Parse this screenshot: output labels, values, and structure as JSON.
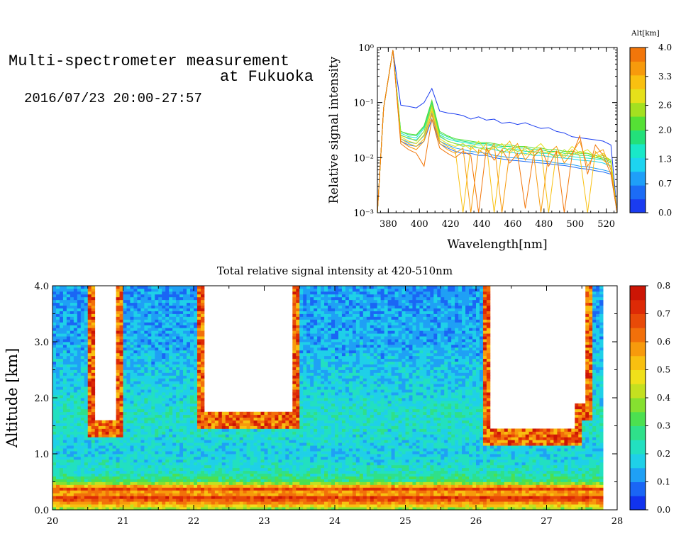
{
  "header": {
    "title_line1": "Multi-spectrometer measurement",
    "title_line2": "at Fukuoka",
    "date_range": "2016/07/23 20:00-27:57"
  },
  "chart_data": [
    {
      "type": "line",
      "title": "",
      "xlabel": "Wavelength[nm]",
      "ylabel": "Relative signal intensity",
      "xlim": [
        373,
        527
      ],
      "ylim": [
        0.001,
        1
      ],
      "yscale": "log",
      "x_ticks": [
        "380",
        "400",
        "420",
        "440",
        "460",
        "480",
        "500",
        "520"
      ],
      "y_ticks": [
        "10⁻³",
        "10⁻²",
        "10⁻¹",
        "10⁰"
      ],
      "colorbar": {
        "label": "Alt[km]",
        "ticks": [
          "0.0",
          "0.7",
          "1.3",
          "2.0",
          "2.6",
          "3.3",
          "4.0"
        ],
        "range": [
          0,
          4
        ],
        "colors": [
          "#1a3cf0",
          "#1c6cf5",
          "#1f9ff8",
          "#1dd4f0",
          "#19e8c8",
          "#23e07a",
          "#55e035",
          "#a4e020",
          "#e6e01a",
          "#f9c010",
          "#f79a0c",
          "#f2760a"
        ]
      },
      "x": [
        373,
        377,
        383,
        388,
        393,
        398,
        403,
        408,
        413,
        418,
        423,
        428,
        433,
        438,
        443,
        448,
        453,
        458,
        463,
        468,
        473,
        478,
        483,
        488,
        493,
        498,
        503,
        508,
        513,
        518,
        523,
        527
      ],
      "series": [
        {
          "color": "#1a3cf0",
          "values": [
            0.001,
            0.08,
            0.9,
            0.09,
            0.085,
            0.08,
            0.1,
            0.18,
            0.07,
            0.065,
            0.062,
            0.058,
            0.05,
            0.055,
            0.048,
            0.05,
            0.042,
            0.044,
            0.04,
            0.043,
            0.038,
            0.034,
            0.035,
            0.03,
            0.028,
            0.024,
            0.023,
            0.022,
            0.021,
            0.02,
            0.017,
            0.001
          ]
        },
        {
          "color": "#1c6cf5",
          "values": [
            0.001,
            0.08,
            0.9,
            0.02,
            0.017,
            0.016,
            0.02,
            0.05,
            0.018,
            0.015,
            0.013,
            0.012,
            0.012,
            0.011,
            0.011,
            0.01,
            0.0095,
            0.009,
            0.0088,
            0.0085,
            0.0082,
            0.008,
            0.0078,
            0.0074,
            0.0072,
            0.0068,
            0.0064,
            0.0062,
            0.0058,
            0.0055,
            0.005,
            0.001
          ]
        },
        {
          "color": "#1f9ff8",
          "values": [
            0.001,
            0.08,
            0.9,
            0.022,
            0.019,
            0.018,
            0.025,
            0.065,
            0.02,
            0.017,
            0.015,
            0.014,
            0.013,
            0.0125,
            0.012,
            0.011,
            0.0105,
            0.01,
            0.0098,
            0.0095,
            0.009,
            0.0088,
            0.0085,
            0.008,
            0.0078,
            0.0075,
            0.007,
            0.0068,
            0.0064,
            0.006,
            0.0055,
            0.001
          ]
        },
        {
          "color": "#1dd4f0",
          "values": [
            0.001,
            0.08,
            0.9,
            0.026,
            0.022,
            0.021,
            0.03,
            0.08,
            0.024,
            0.02,
            0.018,
            0.017,
            0.016,
            0.015,
            0.015,
            0.014,
            0.013,
            0.0125,
            0.012,
            0.012,
            0.011,
            0.011,
            0.0105,
            0.01,
            0.0098,
            0.0095,
            0.009,
            0.0088,
            0.0085,
            0.008,
            0.007,
            0.001
          ]
        },
        {
          "color": "#19e8c8",
          "values": [
            0.001,
            0.08,
            0.9,
            0.028,
            0.024,
            0.023,
            0.034,
            0.09,
            0.026,
            0.022,
            0.02,
            0.019,
            0.018,
            0.017,
            0.017,
            0.016,
            0.015,
            0.014,
            0.014,
            0.013,
            0.013,
            0.012,
            0.012,
            0.011,
            0.011,
            0.0105,
            0.01,
            0.0098,
            0.0095,
            0.009,
            0.008,
            0.001
          ]
        },
        {
          "color": "#23e07a",
          "values": [
            0.001,
            0.08,
            0.9,
            0.03,
            0.026,
            0.025,
            0.036,
            0.1,
            0.028,
            0.024,
            0.021,
            0.02,
            0.019,
            0.018,
            0.018,
            0.017,
            0.016,
            0.016,
            0.015,
            0.015,
            0.014,
            0.014,
            0.013,
            0.013,
            0.012,
            0.012,
            0.011,
            0.011,
            0.01,
            0.0095,
            0.0085,
            0.001
          ]
        },
        {
          "color": "#55e035",
          "values": [
            0.001,
            0.08,
            0.9,
            0.03,
            0.027,
            0.026,
            0.038,
            0.11,
            0.03,
            0.025,
            0.022,
            0.021,
            0.02,
            0.019,
            0.019,
            0.018,
            0.017,
            0.017,
            0.016,
            0.016,
            0.015,
            0.015,
            0.014,
            0.014,
            0.013,
            0.013,
            0.012,
            0.012,
            0.011,
            0.01,
            0.009,
            0.001
          ]
        },
        {
          "color": "#a4e020",
          "values": [
            0.001,
            0.08,
            0.9,
            0.025,
            0.023,
            0.02,
            0.03,
            0.09,
            0.025,
            0.02,
            0.018,
            0.016,
            0.017,
            0.015,
            0.014,
            0.016,
            0.012,
            0.015,
            0.013,
            0.014,
            0.011,
            0.013,
            0.012,
            0.01,
            0.014,
            0.011,
            0.013,
            0.012,
            0.01,
            0.011,
            0.009,
            0.001
          ]
        },
        {
          "color": "#e6e01a",
          "values": [
            0.001,
            0.08,
            0.9,
            0.024,
            0.02,
            0.018,
            0.026,
            0.08,
            0.022,
            0.018,
            0.016,
            0.018,
            0.014,
            0.02,
            0.013,
            0.015,
            0.018,
            0.012,
            0.016,
            0.011,
            0.014,
            0.018,
            0.012,
            0.013,
            0.011,
            0.016,
            0.012,
            0.014,
            0.01,
            0.012,
            0.008,
            0.001
          ]
        },
        {
          "color": "#f9c010",
          "values": [
            0.001,
            0.08,
            0.9,
            0.022,
            0.018,
            0.016,
            0.022,
            0.07,
            0.02,
            0.016,
            0.014,
            0.001,
            0.016,
            0.012,
            0.018,
            0.001,
            0.014,
            0.02,
            0.01,
            0.016,
            0.012,
            0.015,
            0.001,
            0.013,
            0.01,
            0.014,
            0.011,
            0.001,
            0.013,
            0.009,
            0.007,
            0.001
          ]
        },
        {
          "color": "#f79a0c",
          "values": [
            0.001,
            0.08,
            0.9,
            0.02,
            0.016,
            0.014,
            0.02,
            0.06,
            0.018,
            0.014,
            0.012,
            0.015,
            0.001,
            0.014,
            0.011,
            0.018,
            0.001,
            0.013,
            0.018,
            0.009,
            0.014,
            0.001,
            0.012,
            0.016,
            0.008,
            0.012,
            0.02,
            0.007,
            0.012,
            0.014,
            0.006,
            0.001
          ]
        },
        {
          "color": "#f2760a",
          "values": [
            0.001,
            0.08,
            0.9,
            0.018,
            0.014,
            0.012,
            0.007,
            0.05,
            0.015,
            0.012,
            0.01,
            0.013,
            0.011,
            0.001,
            0.015,
            0.009,
            0.014,
            0.008,
            0.012,
            0.0012,
            0.01,
            0.015,
            0.007,
            0.013,
            0.001,
            0.011,
            0.025,
            0.005,
            0.017,
            0.011,
            0.005,
            0.001
          ]
        }
      ]
    },
    {
      "type": "heatmap",
      "title": "Total relative signal intensity at 420-510nm",
      "xlabel": "",
      "ylabel": "Altitude [km]",
      "xlim": [
        20,
        28
      ],
      "ylim": [
        0,
        4
      ],
      "x_ticks": [
        "20",
        "21",
        "22",
        "23",
        "24",
        "25",
        "26",
        "27",
        "28"
      ],
      "y_ticks": [
        "0.0",
        "1.0",
        "2.0",
        "3.0",
        "4.0"
      ],
      "data_x_end": 27.8,
      "colorbar": {
        "ticks": [
          "0.0",
          "0.1",
          "0.2",
          "0.3",
          "0.4",
          "0.5",
          "0.6",
          "0.7",
          "0.8"
        ],
        "range": [
          0,
          0.8
        ],
        "colors": [
          "#1133ee",
          "#1a66f5",
          "#1fa0f5",
          "#1fd0e8",
          "#22e0c0",
          "#2fe08a",
          "#4ce050",
          "#86e030",
          "#c4e020",
          "#f0e01a",
          "#f8c010",
          "#f79a0c",
          "#f2700a",
          "#e84a08",
          "#dd2a06",
          "#cc1505"
        ]
      },
      "altitude_profile": [
        {
          "alt": 0.0,
          "v": 0.35
        },
        {
          "alt": 0.1,
          "v": 0.55
        },
        {
          "alt": 0.22,
          "v": 0.72
        },
        {
          "alt": 0.3,
          "v": 0.52
        },
        {
          "alt": 0.38,
          "v": 0.7
        },
        {
          "alt": 0.5,
          "v": 0.3
        },
        {
          "alt": 0.7,
          "v": 0.22
        },
        {
          "alt": 1.0,
          "v": 0.18
        },
        {
          "alt": 1.3,
          "v": 0.2
        },
        {
          "alt": 1.7,
          "v": 0.22
        },
        {
          "alt": 2.2,
          "v": 0.18
        },
        {
          "alt": 3.0,
          "v": 0.14
        },
        {
          "alt": 3.6,
          "v": 0.13
        },
        {
          "alt": 4.0,
          "v": 0.12
        }
      ],
      "cloud_regions": [
        {
          "t0": 20.62,
          "t1": 20.88,
          "alt0": 1.6,
          "alt1": 4.0
        },
        {
          "t0": 22.15,
          "t1": 23.4,
          "alt0": 1.75,
          "alt1": 4.0
        },
        {
          "t0": 26.22,
          "t1": 27.4,
          "alt0": 1.45,
          "alt1": 4.0
        },
        {
          "t0": 27.4,
          "t1": 27.55,
          "alt0": 1.9,
          "alt1": 4.0
        }
      ]
    }
  ]
}
